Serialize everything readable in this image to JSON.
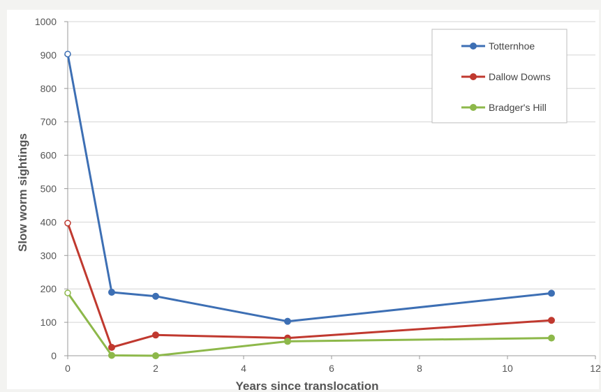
{
  "chart_data": {
    "type": "line",
    "xlabel": "Years since translocation",
    "ylabel": "Slow worm sightings",
    "xlim": [
      0,
      12
    ],
    "ylim": [
      0,
      1000
    ],
    "xticks": [
      0,
      2,
      4,
      6,
      8,
      10,
      12
    ],
    "yticks": [
      0,
      100,
      200,
      300,
      400,
      500,
      600,
      700,
      800,
      900,
      1000
    ],
    "grid": "horizontal",
    "legend_position": "top-right",
    "first_point_hollow": true,
    "series": [
      {
        "name": "Totternhoe",
        "color": "#3d6fb4",
        "x": [
          0,
          1,
          2,
          5,
          11
        ],
        "y": [
          903,
          190,
          178,
          103,
          187
        ]
      },
      {
        "name": "Dallow Downs",
        "color": "#c0392f",
        "x": [
          0,
          1,
          2,
          5,
          11
        ],
        "y": [
          397,
          25,
          62,
          53,
          106
        ]
      },
      {
        "name": "Bradger's Hill",
        "color": "#8db84a",
        "x": [
          0,
          1,
          2,
          5,
          11
        ],
        "y": [
          188,
          1,
          0,
          43,
          53
        ]
      }
    ]
  }
}
